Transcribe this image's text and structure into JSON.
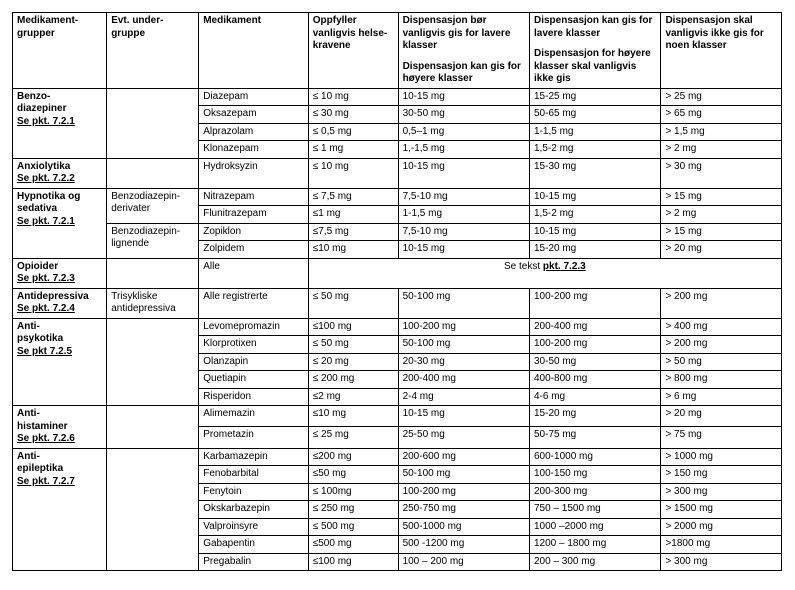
{
  "headers": {
    "group": "Medikament-\ngrupper",
    "subgroup": "Evt. under-\ngruppe",
    "med": "Medikament",
    "c1": "Oppfyller vanligvis helse-\nkravene",
    "c2a": "Dispensasjon bør vanligvis gis for lavere klasser",
    "c2b": "Dispensasjon kan gis for høyere klasser",
    "c3a": "Dispensasjon kan gis for lavere klasser",
    "c3b": "Dispensasjon for høyere klasser skal vanligvis ikke gis",
    "c4": "Dispensasjon skal vanligvis ikke gis for noen klasser"
  },
  "groups": [
    {
      "name": "Benzo-\ndiazepiner",
      "see": "Se pkt. 7.2.1",
      "subgroup": "",
      "rows": [
        {
          "med": "Diazepam",
          "c1": "≤ 10 mg",
          "c2": "10-15 mg",
          "c3": "15-25 mg",
          "c4": "> 25 mg"
        },
        {
          "med": "Oksazepam",
          "c1": "≤ 30 mg",
          "c2": "30-50 mg",
          "c3": "50-65 mg",
          "c4": "> 65 mg"
        },
        {
          "med": "Alprazolam",
          "c1": "≤ 0,5 mg",
          "c2": "0,5–1 mg",
          "c3": "1-1,5 mg",
          "c4": "> 1,5 mg"
        },
        {
          "med": "Klonazepam",
          "c1": "≤ 1 mg",
          "c2": "1,-1,5 mg",
          "c3": "1,5-2 mg",
          "c4": "> 2 mg"
        }
      ]
    },
    {
      "name": "Anxiolytika",
      "see": "Se pkt. 7.2.2",
      "subgroup": "",
      "rows": [
        {
          "med": "Hydroksyzin",
          "c1": "≤ 10 mg",
          "c2": "10-15 mg",
          "c3": "15-30 mg",
          "c4": "> 30 mg"
        }
      ]
    },
    {
      "name": "Hypnotika og sedativa",
      "see": "Se pkt. 7.2.1",
      "subgroups": [
        {
          "label": "Benzodiazepin-\nderivater",
          "rows": [
            {
              "med": "Nitrazepam",
              "c1": "≤ 7,5 mg",
              "c2": "7,5-10 mg",
              "c3": "10-15 mg",
              "c4": "> 15 mg"
            },
            {
              "med": "Flunitrazepam",
              "c1": "≤1 mg",
              "c2": "1-1,5 mg",
              "c3": "1,5-2 mg",
              "c4": "> 2 mg"
            }
          ]
        },
        {
          "label": "Benzodiazepin-\nlignende",
          "rows": [
            {
              "med": "Zopiklon",
              "c1": "≤7,5 mg",
              "c2": "7,5-10 mg",
              "c3": "10-15 mg",
              "c4": "> 15 mg"
            },
            {
              "med": "Zolpidem",
              "c1": "≤10 mg",
              "c2": "10-15 mg",
              "c3": "15-20 mg",
              "c4": "> 20 mg"
            }
          ]
        }
      ]
    },
    {
      "name": "Opioider",
      "see": "Se pkt. 7.2.3",
      "subgroup": "",
      "span_row": {
        "med": "Alle",
        "text_prefix": "Se tekst ",
        "text_link": "pkt. 7.2.3"
      }
    },
    {
      "name": "Antidepressiva",
      "see": "Se pkt. 7.2.4",
      "subgroup": "Trisykliske antidepressiva",
      "rows": [
        {
          "med": "Alle registrerte",
          "c1": "≤ 50 mg",
          "c2": "50-100 mg",
          "c3": "100-200 mg",
          "c4": "> 200 mg"
        }
      ]
    },
    {
      "name": "Anti-\npsykotika",
      "see": "Se pkt 7.2.5",
      "subgroup": "",
      "rows": [
        {
          "med": "Levomepromazin",
          "c1": "≤100 mg",
          "c2": "100-200 mg",
          "c3": "200-400 mg",
          "c4": "> 400 mg"
        },
        {
          "med": "Klorprotixen",
          "c1": "≤ 50 mg",
          "c2": "50-100 mg",
          "c3": "100-200 mg",
          "c4": "> 200 mg"
        },
        {
          "med": "Olanzapin",
          "c1": "≤ 20 mg",
          "c2": "20-30 mg",
          "c3": "30-50 mg",
          "c4": "> 50 mg"
        },
        {
          "med": "Quetiapin",
          "c1": "≤ 200 mg",
          "c2": "200-400 mg",
          "c3": "400-800 mg",
          "c4": "> 800 mg"
        },
        {
          "med": "Risperidon",
          "c1": "≤2 mg",
          "c2": "2-4 mg",
          "c3": "4-6 mg",
          "c4": "> 6 mg"
        }
      ]
    },
    {
      "name": "Anti-\nhistaminer",
      "see": "Se pkt. 7.2.6",
      "subgroup": "",
      "rows": [
        {
          "med": "Alimemazin",
          "c1": "≤10 mg",
          "c2": "10-15 mg",
          "c3": "15-20 mg",
          "c4": "> 20 mg"
        },
        {
          "med": "Prometazin",
          "c1": "≤ 25 mg",
          "c2": "25-50 mg",
          "c3": "50-75 mg",
          "c4": "> 75 mg"
        }
      ]
    },
    {
      "name": "Anti-\nepileptika",
      "see": "Se pkt. 7.2.7",
      "subgroup": "",
      "rows": [
        {
          "med": "Karbamazepin",
          "c1": "≤200 mg",
          "c2": "200-600 mg",
          "c3": "600-1000 mg",
          "c4": "> 1000 mg"
        },
        {
          "med": "Fenobarbital",
          "c1": "≤50 mg",
          "c2": "50-100 mg",
          "c3": "100-150 mg",
          "c4": "> 150 mg"
        },
        {
          "med": "Fenytoin",
          "c1": "≤ 100mg",
          "c2": "100-200 mg",
          "c3": "200-300 mg",
          "c4": "> 300 mg"
        },
        {
          "med": "Okskarbazepin",
          "c1": "≤ 250 mg",
          "c2": "250-750 mg",
          "c3": "750 – 1500 mg",
          "c4": "> 1500 mg"
        },
        {
          "med": "Valproinsyre",
          "c1": "≤ 500 mg",
          "c2": "500-1000 mg",
          "c3": "1000 –2000 mg",
          "c4": "> 2000 mg"
        },
        {
          "med": "Gabapentin",
          "c1": "≤500 mg",
          "c2": "500 -1200 mg",
          "c3": "1200 – 1800 mg",
          "c4": ">1800 mg"
        },
        {
          "med": "Pregabalin",
          "c1": "≤100 mg",
          "c2": "100 – 200 mg",
          "c3": "200 – 300 mg",
          "c4": "> 300 mg"
        }
      ]
    }
  ]
}
